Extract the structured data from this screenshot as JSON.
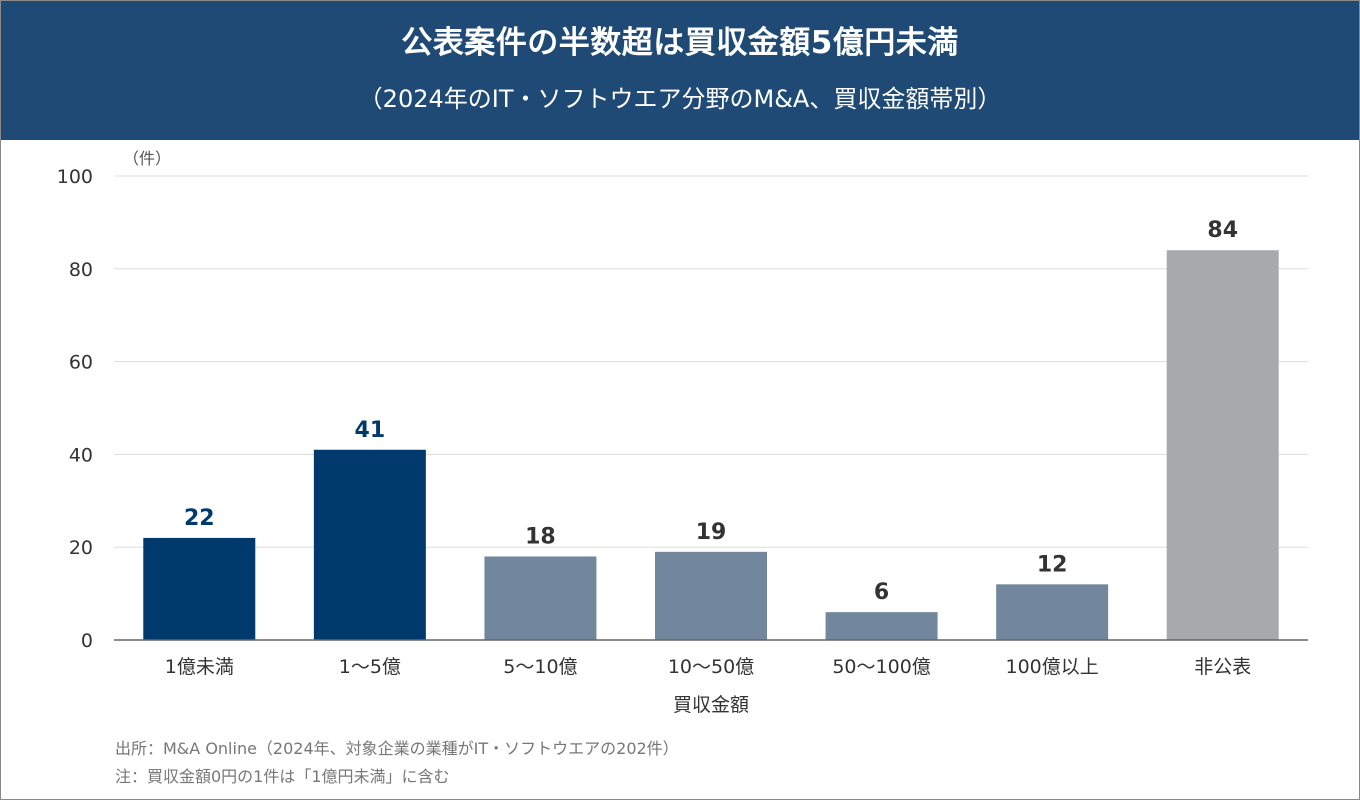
{
  "header": {
    "title": "公表案件の半数超は買収金額5億円未満",
    "subtitle": "（2024年のIT・ソフトウエア分野のM&A、買収金額帯別）"
  },
  "chart_data": {
    "type": "bar",
    "unit_label": "（件）",
    "categories": [
      "1億未満",
      "1～5億",
      "5～10億",
      "10～50億",
      "50～100億",
      "100億以上",
      "非公表"
    ],
    "values": [
      22,
      41,
      18,
      19,
      6,
      12,
      84
    ],
    "xlabel": "買収金額",
    "ylabel": "",
    "ylim": [
      0,
      100
    ],
    "yticks": [
      0,
      20,
      40,
      60,
      80,
      100
    ],
    "grid": true,
    "colors": [
      "#003a6c",
      "#003a6c",
      "#72879d",
      "#72879d",
      "#72879d",
      "#72879d",
      "#a7a9ac"
    ],
    "label_colors": [
      "#003a6c",
      "#003a6c",
      "#333333",
      "#333333",
      "#333333",
      "#333333",
      "#333333"
    ]
  },
  "notes": {
    "source": "出所：M&A Online（2024年、対象企業の業種がIT・ソフトウエアの202件）",
    "note": "注：買収金額0円の1件は「1億円未満」に含む"
  }
}
